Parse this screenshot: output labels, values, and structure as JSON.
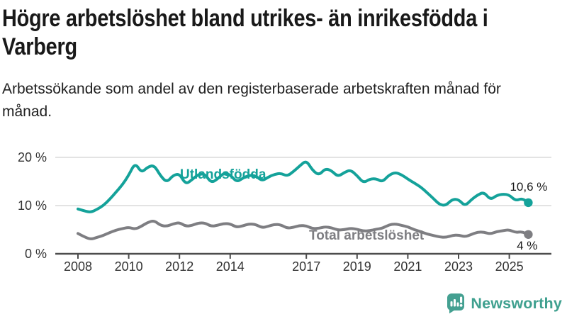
{
  "page": {
    "title": "Högre arbetslöshet bland utrikes- än inrikesfödda i Varberg",
    "subtitle": "Arbetssökande som andel av den registerbaserade arbetskraften månad för månad."
  },
  "colors": {
    "accent_teal": "#14a29a",
    "series_gray": "#7e7e82",
    "grid": "#dadada",
    "axis": "#4d4d4d",
    "text_dark": "#191919",
    "logo_teal": "#44a091"
  },
  "chart_data": {
    "type": "line",
    "x_unit": "decimal_year",
    "grid": "horizontal",
    "ylim": [
      0,
      22
    ],
    "yticks": [
      "0 %",
      "10 %",
      "20 %"
    ],
    "ytick_values": [
      0,
      10,
      20
    ],
    "xticks": [
      2008,
      2010,
      2012,
      2014,
      2017,
      2019,
      2021,
      2023,
      2025
    ],
    "x": [
      2008,
      2008.25,
      2008.5,
      2008.75,
      2009,
      2009.25,
      2009.5,
      2009.75,
      2010,
      2010.25,
      2010.5,
      2010.75,
      2011,
      2011.25,
      2011.5,
      2011.75,
      2012,
      2012.25,
      2012.5,
      2012.75,
      2013,
      2013.25,
      2013.5,
      2013.75,
      2014,
      2014.25,
      2014.5,
      2014.75,
      2015,
      2015.25,
      2015.5,
      2015.75,
      2016,
      2016.25,
      2016.5,
      2016.75,
      2017,
      2017.25,
      2017.5,
      2017.75,
      2018,
      2018.25,
      2018.5,
      2018.75,
      2019,
      2019.25,
      2019.5,
      2019.75,
      2020,
      2020.25,
      2020.5,
      2020.75,
      2021,
      2021.25,
      2021.5,
      2021.75,
      2022,
      2022.25,
      2022.5,
      2022.75,
      2023,
      2023.25,
      2023.5,
      2023.75,
      2024,
      2024.25,
      2024.5,
      2024.75,
      2025,
      2025.25,
      2025.5,
      2025.75
    ],
    "series": [
      {
        "name": "Utlandsfödda",
        "color": "#14a29a",
        "end_label": "10,6 %",
        "values": [
          9.3,
          8.9,
          8.6,
          9.2,
          10.0,
          11.3,
          12.8,
          14.3,
          16.3,
          18.9,
          16.8,
          18.0,
          18.4,
          16.2,
          14.8,
          16.3,
          16.6,
          14.4,
          15.4,
          16.5,
          16.6,
          14.7,
          15.5,
          16.8,
          16.4,
          14.9,
          15.7,
          16.3,
          16.2,
          15.1,
          15.9,
          16.5,
          16.7,
          16.1,
          17.1,
          18.3,
          19.4,
          17.3,
          16.3,
          17.7,
          17.2,
          16.0,
          16.9,
          17.4,
          16.2,
          14.7,
          15.5,
          15.6,
          14.9,
          16.3,
          16.9,
          16.4,
          15.5,
          14.7,
          13.9,
          12.7,
          11.5,
          10.2,
          10.0,
          11.3,
          11.3,
          9.9,
          11.2,
          12.2,
          12.8,
          11.2,
          12.1,
          12.4,
          12.2,
          11.0,
          11.5,
          10.6
        ]
      },
      {
        "name": "Total arbetslöshet",
        "color": "#7e7e82",
        "end_label": "4 %",
        "values": [
          4.2,
          3.5,
          3.0,
          3.4,
          3.8,
          4.4,
          4.9,
          5.2,
          5.5,
          5.1,
          5.7,
          6.5,
          6.9,
          5.9,
          5.7,
          6.2,
          6.5,
          5.7,
          5.9,
          6.4,
          6.4,
          5.7,
          5.9,
          6.3,
          6.2,
          5.5,
          5.8,
          6.2,
          6.1,
          5.4,
          5.7,
          6.1,
          6.0,
          5.3,
          5.5,
          5.9,
          5.8,
          5.2,
          5.3,
          5.6,
          5.4,
          4.9,
          5.0,
          5.3,
          5.1,
          4.7,
          4.8,
          5.1,
          5.3,
          6.0,
          6.2,
          5.9,
          5.6,
          5.0,
          4.6,
          4.1,
          3.8,
          3.5,
          3.4,
          3.8,
          3.9,
          3.5,
          4.0,
          4.5,
          4.5,
          4.1,
          4.6,
          4.8,
          5.0,
          4.4,
          4.6,
          4.0
        ]
      }
    ]
  },
  "footer": {
    "brand": "Newsworthy"
  }
}
